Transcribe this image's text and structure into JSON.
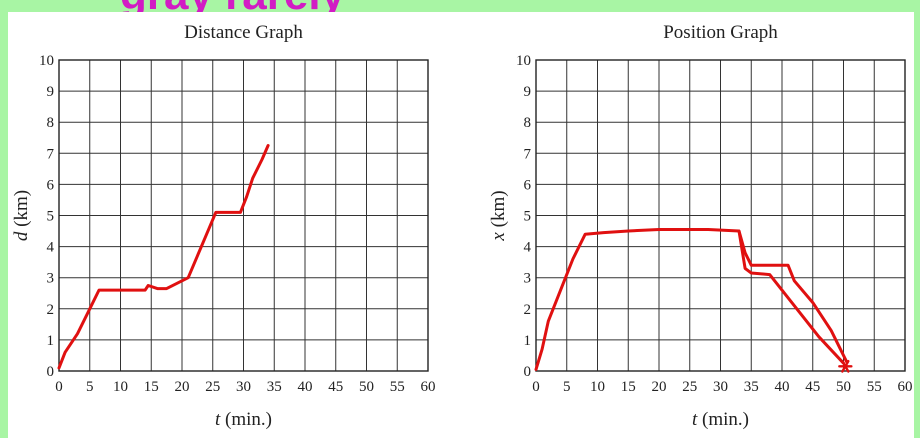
{
  "banner": {
    "text": "gray rarely"
  },
  "chart_data": [
    {
      "type": "line",
      "title": "Distance Graph",
      "xlabel": "t (min.)",
      "ylabel": "d (km)",
      "xlim": [
        0,
        60
      ],
      "ylim": [
        0,
        10
      ],
      "xticks": [
        "0",
        "5",
        "10",
        "15",
        "20",
        "25",
        "30",
        "35",
        "40",
        "45",
        "50",
        "55",
        "60"
      ],
      "yticks": [
        "0",
        "1",
        "2",
        "3",
        "4",
        "5",
        "6",
        "7",
        "8",
        "9",
        "10"
      ],
      "grid": true,
      "series": [
        {
          "color": "#e01010",
          "x": [
            0,
            1,
            3,
            5,
            6.5,
            8,
            10,
            14,
            14.5,
            16,
            17.5,
            19,
            21,
            22.5,
            24,
            25.5,
            26,
            28,
            29.5,
            30.5,
            31.5,
            33,
            34
          ],
          "y": [
            0.1,
            0.6,
            1.2,
            2.0,
            2.6,
            2.6,
            2.6,
            2.6,
            2.75,
            2.65,
            2.65,
            2.8,
            3.0,
            3.7,
            4.4,
            5.1,
            5.1,
            5.1,
            5.1,
            5.6,
            6.2,
            6.8,
            7.25
          ]
        }
      ]
    },
    {
      "type": "line",
      "title": "Position Graph",
      "xlabel": "t (min.)",
      "ylabel": "x (km)",
      "xlim": [
        0,
        60
      ],
      "ylim": [
        0,
        10
      ],
      "xticks": [
        "0",
        "5",
        "10",
        "15",
        "20",
        "25",
        "30",
        "35",
        "40",
        "45",
        "50",
        "55",
        "60"
      ],
      "yticks": [
        "0",
        "1",
        "2",
        "3",
        "4",
        "5",
        "6",
        "7",
        "8",
        "9",
        "10"
      ],
      "grid": true,
      "series": [
        {
          "color": "#e01010",
          "x": [
            0,
            1,
            2,
            4,
            6,
            8,
            11,
            15,
            20,
            28,
            33,
            34,
            35,
            38,
            42,
            46,
            50
          ],
          "y": [
            0.05,
            0.7,
            1.6,
            2.6,
            3.6,
            4.4,
            4.45,
            4.5,
            4.55,
            4.55,
            4.5,
            3.3,
            3.15,
            3.1,
            2.1,
            1.1,
            0.25
          ]
        },
        {
          "color": "#e01010",
          "x": [
            33,
            34,
            35,
            38,
            41,
            42,
            45,
            48,
            50.5
          ],
          "y": [
            4.5,
            3.8,
            3.4,
            3.4,
            3.4,
            2.9,
            2.2,
            1.3,
            0.3
          ]
        }
      ],
      "markers": [
        {
          "x": 50.3,
          "y": 0.15,
          "symbol": "*",
          "color": "#e01010"
        }
      ]
    }
  ]
}
